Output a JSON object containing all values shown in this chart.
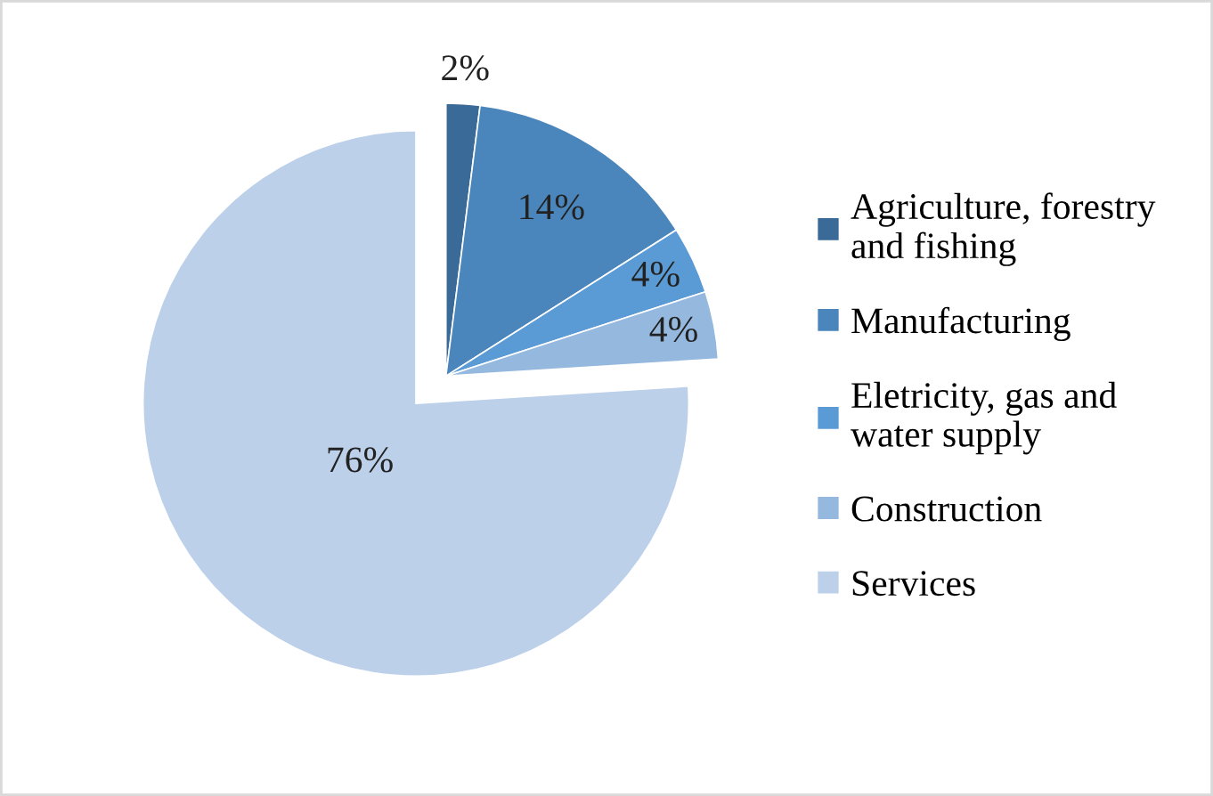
{
  "chart_data": {
    "type": "pie",
    "categories": [
      "Agriculture, forestry and fishing",
      "Manufacturing",
      "Eletricity, gas and water supply",
      "Construction",
      "Services"
    ],
    "values": [
      2,
      14,
      4,
      4,
      76
    ],
    "colors": [
      "#3a6a98",
      "#4a86bc",
      "#5b9bd5",
      "#95b8df",
      "#bcd0ea"
    ],
    "value_labels": [
      "2%",
      "14%",
      "4%",
      "4%",
      "76%"
    ],
    "legend": "right"
  }
}
